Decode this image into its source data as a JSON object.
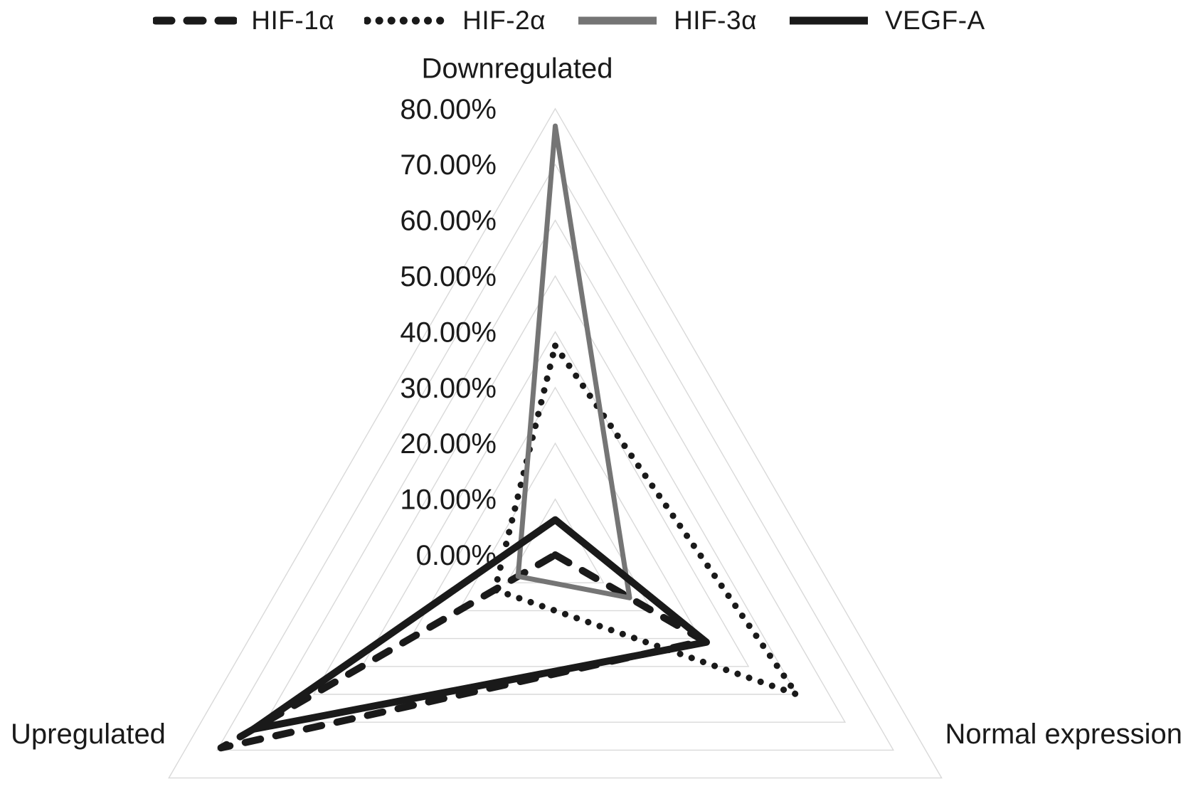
{
  "figure": {
    "background": "#ffffff",
    "text_color": "#1a1a1a"
  },
  "chart_data": {
    "type": "radar",
    "title": "",
    "categories": [
      "Downregulated",
      "Normal expression",
      "Upregulated"
    ],
    "series": [
      {
        "name": "HIF-1α",
        "style": "dashed",
        "color": "#1a1a1a",
        "width": 10,
        "values": [
          0.0,
          30.8,
          69.2
        ]
      },
      {
        "name": "HIF-2α",
        "style": "dotted",
        "color": "#1a1a1a",
        "width": 9,
        "values": [
          37.5,
          50.0,
          12.5
        ]
      },
      {
        "name": "HIF-3α",
        "style": "solid",
        "color": "#757575",
        "width": 7,
        "values": [
          76.9,
          15.4,
          7.7
        ]
      },
      {
        "name": "VEGF-A",
        "style": "solid",
        "color": "#1a1a1a",
        "width": 10,
        "values": [
          6.3,
          31.3,
          62.5
        ]
      }
    ],
    "value_axis": {
      "min": 0,
      "max": 80,
      "step": 10,
      "tick_labels": [
        "0.00%",
        "10.00%",
        "20.00%",
        "30.00%",
        "40.00%",
        "50.00%",
        "60.00%",
        "70.00%",
        "80.00%"
      ],
      "unit": "%"
    },
    "grid": {
      "visible": true,
      "color": "#d9d9d9",
      "shape": "concentric-triangles",
      "spokes": false
    },
    "legend": {
      "position": "top"
    }
  }
}
